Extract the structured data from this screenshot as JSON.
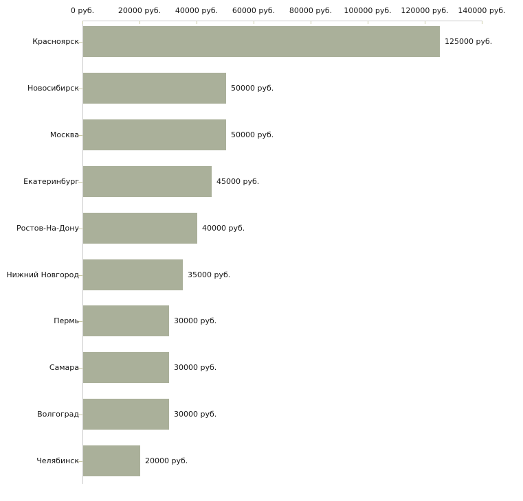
{
  "chart_data": {
    "type": "bar",
    "orientation": "horizontal",
    "title": "",
    "xlabel": "",
    "ylabel": "",
    "axis_position": "top",
    "grid": false,
    "legend_position": "none",
    "xlim": [
      0,
      140000
    ],
    "categories": [
      "Красноярск",
      "Новосибирск",
      "Москва",
      "Екатеринбург",
      "Ростов-На-Дону",
      "Нижний Новгород",
      "Пермь",
      "Самара",
      "Волгоград",
      "Челябинск"
    ],
    "values": [
      125000,
      50000,
      50000,
      45000,
      40000,
      35000,
      30000,
      30000,
      30000,
      20000
    ],
    "value_labels": [
      "125000 руб.",
      "50000 руб.",
      "50000 руб.",
      "45000 руб.",
      "40000 руб.",
      "35000 руб.",
      "30000 руб.",
      "30000 руб.",
      "30000 руб.",
      "20000 руб."
    ],
    "x_axis": {
      "tick_values": [
        0,
        20000,
        40000,
        60000,
        80000,
        100000,
        120000,
        140000
      ],
      "tick_labels": [
        "0 руб.",
        "20000 руб.",
        "40000 руб.",
        "60000 руб.",
        "80000 руб.",
        "100000 руб.",
        "120000 руб.",
        "140000 руб."
      ]
    },
    "colors": {
      "bar": "#aab09a",
      "axis_line": "#c9c9c9",
      "tick": "#c9c9a3",
      "text": "#141414",
      "background": "#ffffff"
    }
  }
}
